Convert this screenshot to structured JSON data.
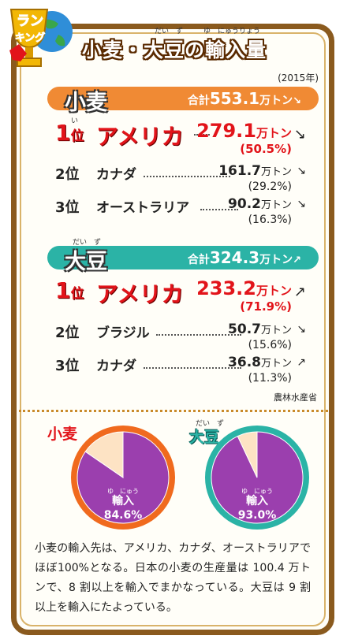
{
  "title": "小麦・大豆の輸入量",
  "title_ruby": {
    "daizu": "だい　ず",
    "yunyuryou": "ゆ　にゅうりょう"
  },
  "badge": {
    "line1": "ラン",
    "line2": "キング"
  },
  "year": "(2015年)",
  "wheat": {
    "name": "小麦",
    "total_label": "合計",
    "total_value": "553.1",
    "total_unit": "万トン",
    "color": "#f08a34",
    "rows": [
      {
        "rank": "1",
        "rank_suffix": "位",
        "rank_ruby": "い",
        "country": "アメリカ",
        "value": "279.1",
        "unit": "万トン",
        "pct": "(50.5%)",
        "arrow": "↘"
      },
      {
        "rank": "2",
        "rank_suffix": "位",
        "country": "カナダ",
        "value": "161.7",
        "unit": "万トン",
        "pct": "(29.2%)",
        "arrow": "↘"
      },
      {
        "rank": "3",
        "rank_suffix": "位",
        "country": "オーストラリア",
        "value": "90.2",
        "unit": "万トン",
        "pct": "(16.3%)",
        "arrow": "↘"
      }
    ]
  },
  "soy": {
    "name": "大豆",
    "name_ruby": "だい　ず",
    "total_label": "合計",
    "total_value": "324.3",
    "total_unit": "万トン",
    "color": "#2bb3a6",
    "rows": [
      {
        "rank": "1",
        "rank_suffix": "位",
        "country": "アメリカ",
        "value": "233.2",
        "unit": "万トン",
        "pct": "(71.9%)",
        "arrow": "↗"
      },
      {
        "rank": "2",
        "rank_suffix": "位",
        "country": "ブラジル",
        "value": "50.7",
        "unit": "万トン",
        "pct": "(15.6%)",
        "arrow": "↘"
      },
      {
        "rank": "3",
        "rank_suffix": "位",
        "country": "カナダ",
        "value": "36.8",
        "unit": "万トン",
        "pct": "(11.3%)",
        "arrow": "↗"
      }
    ]
  },
  "source": "農林水産省",
  "chart_data": [
    {
      "type": "pie",
      "title": "小麦",
      "labels": [
        "輸入",
        ""
      ],
      "values": [
        84.6,
        15.4
      ],
      "data_label": "84.6%",
      "slice_label": "輸入",
      "slice_ruby": "ゆ　にゅう",
      "colors": [
        "#9b3fae",
        "#fde3c4"
      ],
      "ring_color": "#f06a1e"
    },
    {
      "type": "pie",
      "title": "大豆",
      "title_ruby": "だい　ず",
      "labels": [
        "輸入",
        ""
      ],
      "values": [
        93.0,
        7.0
      ],
      "data_label": "93.0%",
      "slice_label": "輸入",
      "slice_ruby": "ゆ　にゅう",
      "colors": [
        "#9b3fae",
        "#fde3c4"
      ],
      "ring_color": "#2bb3a6"
    }
  ],
  "description": "小麦の輸入先は、アメリカ、カナダ、オーストラリアでほぼ100%となる。日本の小麦の生産量は 100.4 万トンで、8 割以上を輸入でまかなっている。大豆は 9 割以上を輸入にたよっている。"
}
